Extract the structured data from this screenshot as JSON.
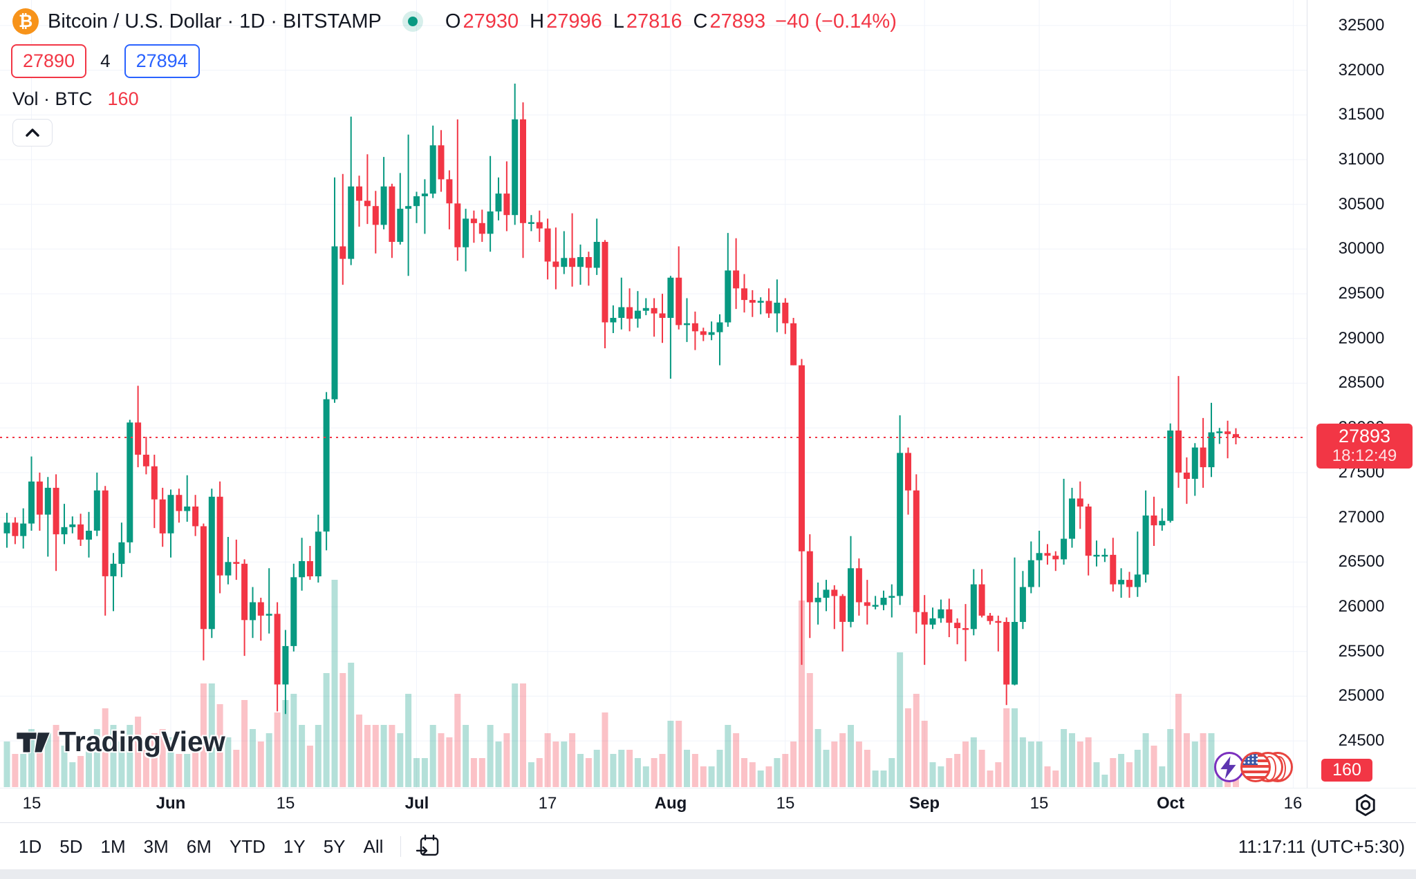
{
  "header": {
    "symbol_icon": "₿",
    "title": "Bitcoin / U.S. Dollar · 1D · BITSTAMP",
    "ohlc": [
      [
        "O",
        "27930"
      ],
      [
        "H",
        "27996"
      ],
      [
        "L",
        "27816"
      ],
      [
        "C",
        "27893"
      ]
    ],
    "change": "−40 (−0.14%)",
    "bid": "27890",
    "spread": "4",
    "ask": "27894",
    "vol_label": "Vol · BTC",
    "vol_value": "160"
  },
  "price_axis": {
    "price_label": "27893",
    "countdown": "18:12:49",
    "volume_badge": "160"
  },
  "time_axis": {
    "ticks": [
      {
        "label": "15",
        "day": 3,
        "bold": false
      },
      {
        "label": "Jun",
        "day": 20,
        "bold": true
      },
      {
        "label": "15",
        "day": 34,
        "bold": false
      },
      {
        "label": "Jul",
        "day": 50,
        "bold": true
      },
      {
        "label": "17",
        "day": 66,
        "bold": false
      },
      {
        "label": "Aug",
        "day": 81,
        "bold": true
      },
      {
        "label": "15",
        "day": 95,
        "bold": false
      },
      {
        "label": "Sep",
        "day": 112,
        "bold": true
      },
      {
        "label": "15",
        "day": 126,
        "bold": false
      },
      {
        "label": "Oct",
        "day": 142,
        "bold": true
      },
      {
        "label": "16",
        "day": 157,
        "bold": false
      }
    ]
  },
  "toolbar": {
    "ranges": [
      "1D",
      "5D",
      "1M",
      "3M",
      "6M",
      "YTD",
      "1Y",
      "5Y",
      "All"
    ],
    "clock": "11:17:11 (UTC+5:30)"
  },
  "watermark": {
    "text": "TradingView"
  },
  "colors": {
    "up": "#089981",
    "down": "#f23645",
    "up_vol": "rgba(8,153,129,0.30)",
    "down_vol": "rgba(242,54,69,0.30)",
    "accent_blue": "#2962ff",
    "red": "#f23645",
    "text": "#131722",
    "grid": "#f0f3fa",
    "border": "#e0e3eb",
    "btc_orange": "#f7931a"
  },
  "chart_data": {
    "type": "candlestick",
    "symbol": "Bitcoin / U.S. Dollar",
    "exchange": "BITSTAMP",
    "interval": "1D",
    "last_price": 27893,
    "change": "−40 (−0.14%)",
    "price_ticks": [
      32500,
      32000,
      31500,
      31000,
      30500,
      30000,
      29500,
      29000,
      28500,
      28000,
      27500,
      27000,
      26500,
      26000,
      25500,
      25000,
      24500
    ],
    "y_axis_range": [
      24250,
      32750
    ],
    "legend_note": "candles are [open,high,low,close,relative_volume] daily from mid-May to Oct",
    "candles": [
      [
        26820,
        27050,
        26660,
        26940,
        0.22
      ],
      [
        26940,
        27000,
        26700,
        26790,
        0.16
      ],
      [
        26790,
        27100,
        26650,
        26930,
        0.16
      ],
      [
        26930,
        27680,
        26850,
        27400,
        0.28
      ],
      [
        27400,
        27500,
        26850,
        27030,
        0.24
      ],
      [
        27030,
        27450,
        26560,
        27330,
        0.26
      ],
      [
        27330,
        27480,
        26400,
        26810,
        0.3
      ],
      [
        26810,
        27150,
        26700,
        26890,
        0.2
      ],
      [
        26890,
        27010,
        26820,
        26920,
        0.12
      ],
      [
        26920,
        27040,
        26680,
        26750,
        0.15
      ],
      [
        26750,
        27060,
        26550,
        26850,
        0.2
      ],
      [
        26850,
        27500,
        26790,
        27300,
        0.28
      ],
      [
        27300,
        27350,
        25900,
        26340,
        0.38
      ],
      [
        26340,
        26600,
        25950,
        26480,
        0.3
      ],
      [
        26480,
        26940,
        26330,
        26720,
        0.22
      ],
      [
        26720,
        28090,
        26600,
        28060,
        0.3
      ],
      [
        28060,
        28470,
        27560,
        27700,
        0.34
      ],
      [
        27700,
        27900,
        27480,
        27570,
        0.18
      ],
      [
        27570,
        27700,
        26880,
        27200,
        0.26
      ],
      [
        27200,
        27330,
        26670,
        26820,
        0.28
      ],
      [
        26820,
        27310,
        26550,
        27250,
        0.24
      ],
      [
        27250,
        27320,
        26940,
        27070,
        0.16
      ],
      [
        27070,
        27470,
        26950,
        27120,
        0.16
      ],
      [
        27120,
        27250,
        26790,
        26900,
        0.18
      ],
      [
        26900,
        26930,
        25400,
        25750,
        0.5
      ],
      [
        25750,
        27320,
        25650,
        27230,
        0.5
      ],
      [
        27230,
        27400,
        26150,
        26350,
        0.4
      ],
      [
        26350,
        26780,
        26250,
        26500,
        0.24
      ],
      [
        26500,
        26750,
        26300,
        26480,
        0.18
      ],
      [
        26480,
        26530,
        25450,
        25850,
        0.42
      ],
      [
        25850,
        26220,
        25650,
        26050,
        0.28
      ],
      [
        26050,
        26100,
        25620,
        25900,
        0.22
      ],
      [
        25900,
        26430,
        25700,
        25920,
        0.26
      ],
      [
        25920,
        26050,
        24830,
        25130,
        0.36
      ],
      [
        25130,
        25740,
        24800,
        25560,
        0.42
      ],
      [
        25560,
        26480,
        25500,
        26330,
        0.45
      ],
      [
        26330,
        26770,
        26180,
        26510,
        0.3
      ],
      [
        26510,
        26680,
        26300,
        26340,
        0.2
      ],
      [
        26340,
        27030,
        26270,
        26840,
        0.3
      ],
      [
        26840,
        28400,
        26630,
        28320,
        0.55
      ],
      [
        28320,
        30800,
        28280,
        30030,
        1.0
      ],
      [
        30030,
        30840,
        29600,
        29890,
        0.55
      ],
      [
        29890,
        31480,
        29820,
        30700,
        0.6
      ],
      [
        30700,
        30820,
        30250,
        30540,
        0.35
      ],
      [
        30540,
        31060,
        30280,
        30480,
        0.3
      ],
      [
        30480,
        30650,
        29950,
        30270,
        0.3
      ],
      [
        30270,
        31030,
        30220,
        30700,
        0.3
      ],
      [
        30700,
        30730,
        29900,
        30080,
        0.3
      ],
      [
        30080,
        30850,
        30050,
        30450,
        0.26
      ],
      [
        30450,
        31280,
        29700,
        30480,
        0.45
      ],
      [
        30480,
        30640,
        30290,
        30590,
        0.14
      ],
      [
        30590,
        30780,
        30170,
        30620,
        0.14
      ],
      [
        30620,
        31380,
        30570,
        31160,
        0.3
      ],
      [
        31160,
        31330,
        30640,
        30780,
        0.26
      ],
      [
        30780,
        30880,
        30220,
        30510,
        0.24
      ],
      [
        30510,
        31450,
        29870,
        30020,
        0.45
      ],
      [
        30020,
        30450,
        29750,
        30340,
        0.3
      ],
      [
        30340,
        30430,
        30070,
        30290,
        0.14
      ],
      [
        30290,
        30440,
        30080,
        30170,
        0.14
      ],
      [
        30170,
        31040,
        29970,
        30420,
        0.3
      ],
      [
        30420,
        30800,
        30320,
        30620,
        0.22
      ],
      [
        30620,
        30980,
        30200,
        30380,
        0.26
      ],
      [
        30380,
        31850,
        30270,
        31450,
        0.5
      ],
      [
        31450,
        31640,
        29900,
        30290,
        0.5
      ],
      [
        30290,
        30380,
        30200,
        30300,
        0.12
      ],
      [
        30300,
        30430,
        30080,
        30230,
        0.14
      ],
      [
        30230,
        30340,
        29660,
        29860,
        0.26
      ],
      [
        29860,
        30240,
        29550,
        29800,
        0.22
      ],
      [
        29800,
        30200,
        29720,
        29900,
        0.22
      ],
      [
        29900,
        30400,
        29580,
        29800,
        0.26
      ],
      [
        29800,
        30050,
        29600,
        29910,
        0.16
      ],
      [
        29910,
        29970,
        29590,
        29790,
        0.14
      ],
      [
        29790,
        30340,
        29710,
        30080,
        0.18
      ],
      [
        30080,
        30100,
        28890,
        29180,
        0.36
      ],
      [
        29180,
        29370,
        29060,
        29230,
        0.16
      ],
      [
        29230,
        29680,
        29100,
        29350,
        0.18
      ],
      [
        29350,
        29560,
        29080,
        29220,
        0.18
      ],
      [
        29220,
        29530,
        29120,
        29310,
        0.14
      ],
      [
        29310,
        29450,
        29260,
        29340,
        0.1
      ],
      [
        29340,
        29450,
        29020,
        29280,
        0.14
      ],
      [
        29280,
        29500,
        28950,
        29230,
        0.16
      ],
      [
        29230,
        29700,
        28550,
        29680,
        0.32
      ],
      [
        29680,
        30030,
        29100,
        29150,
        0.32
      ],
      [
        29150,
        29450,
        28960,
        29170,
        0.18
      ],
      [
        29170,
        29300,
        28870,
        29080,
        0.16
      ],
      [
        29080,
        29120,
        28970,
        29040,
        0.1
      ],
      [
        29040,
        29190,
        28980,
        29070,
        0.1
      ],
      [
        29070,
        29270,
        28700,
        29180,
        0.18
      ],
      [
        29180,
        30180,
        29130,
        29760,
        0.3
      ],
      [
        29760,
        30120,
        29330,
        29560,
        0.26
      ],
      [
        29560,
        29720,
        29290,
        29430,
        0.14
      ],
      [
        29430,
        29540,
        29240,
        29400,
        0.12
      ],
      [
        29400,
        29460,
        29270,
        29420,
        0.08
      ],
      [
        29420,
        29560,
        29230,
        29280,
        0.1
      ],
      [
        29280,
        29660,
        29070,
        29400,
        0.14
      ],
      [
        29400,
        29450,
        29050,
        29170,
        0.16
      ],
      [
        29170,
        29230,
        28700,
        28700,
        0.22
      ],
      [
        28700,
        28770,
        25350,
        26620,
        0.9
      ],
      [
        26620,
        26810,
        25650,
        26050,
        0.55
      ],
      [
        26050,
        26270,
        25800,
        26100,
        0.28
      ],
      [
        26100,
        26300,
        25950,
        26190,
        0.18
      ],
      [
        26190,
        26240,
        25750,
        26120,
        0.22
      ],
      [
        26120,
        26140,
        25500,
        25830,
        0.26
      ],
      [
        25830,
        26790,
        25770,
        26430,
        0.3
      ],
      [
        26430,
        26540,
        25900,
        26050,
        0.22
      ],
      [
        26050,
        26300,
        25800,
        26010,
        0.18
      ],
      [
        26010,
        26120,
        25970,
        26020,
        0.08
      ],
      [
        26020,
        26180,
        25960,
        26100,
        0.08
      ],
      [
        26100,
        26250,
        25880,
        26120,
        0.14
      ],
      [
        26120,
        28140,
        26020,
        27720,
        0.65
      ],
      [
        27720,
        27780,
        27030,
        27300,
        0.38
      ],
      [
        27300,
        27480,
        25700,
        25940,
        0.45
      ],
      [
        25940,
        26130,
        25350,
        25800,
        0.32
      ],
      [
        25800,
        25990,
        25750,
        25870,
        0.12
      ],
      [
        25870,
        26080,
        25820,
        25970,
        0.1
      ],
      [
        25970,
        26090,
        25660,
        25820,
        0.14
      ],
      [
        25820,
        25870,
        25580,
        25760,
        0.16
      ],
      [
        25760,
        26030,
        25390,
        25750,
        0.22
      ],
      [
        25750,
        26420,
        25680,
        26250,
        0.24
      ],
      [
        26250,
        26420,
        25880,
        25900,
        0.18
      ],
      [
        25900,
        25930,
        25800,
        25840,
        0.08
      ],
      [
        25840,
        25900,
        25500,
        25830,
        0.12
      ],
      [
        25830,
        25880,
        24900,
        25130,
        0.38
      ],
      [
        25130,
        26550,
        25120,
        25830,
        0.38
      ],
      [
        25830,
        26400,
        25750,
        26220,
        0.24
      ],
      [
        26220,
        26730,
        26150,
        26520,
        0.22
      ],
      [
        26520,
        26850,
        26220,
        26600,
        0.22
      ],
      [
        26600,
        26700,
        26470,
        26570,
        0.1
      ],
      [
        26570,
        26620,
        26400,
        26530,
        0.08
      ],
      [
        26530,
        27430,
        26470,
        26760,
        0.28
      ],
      [
        26760,
        27330,
        26660,
        27210,
        0.26
      ],
      [
        27210,
        27400,
        26870,
        27120,
        0.22
      ],
      [
        27120,
        27150,
        26350,
        26570,
        0.24
      ],
      [
        26570,
        26740,
        26450,
        26580,
        0.12
      ],
      [
        26580,
        26650,
        26500,
        26580,
        0.06
      ],
      [
        26580,
        26770,
        26170,
        26250,
        0.14
      ],
      [
        26250,
        26430,
        26100,
        26300,
        0.16
      ],
      [
        26300,
        26390,
        26100,
        26220,
        0.12
      ],
      [
        26220,
        26840,
        26110,
        26360,
        0.18
      ],
      [
        26360,
        27300,
        26270,
        27020,
        0.26
      ],
      [
        27020,
        27230,
        26680,
        26910,
        0.2
      ],
      [
        26910,
        27100,
        26850,
        26960,
        0.1
      ],
      [
        26960,
        28050,
        26940,
        27970,
        0.28
      ],
      [
        27970,
        28580,
        27330,
        27500,
        0.45
      ],
      [
        27500,
        27670,
        27150,
        27430,
        0.26
      ],
      [
        27430,
        27830,
        27240,
        27780,
        0.22
      ],
      [
        27780,
        28110,
        27330,
        27560,
        0.26
      ],
      [
        27560,
        28280,
        27450,
        27950,
        0.26
      ],
      [
        27950,
        28000,
        27820,
        27960,
        0.1
      ],
      [
        27960,
        28080,
        27660,
        27930,
        0.12
      ],
      [
        27930,
        27996,
        27816,
        27893,
        0.1
      ]
    ]
  }
}
